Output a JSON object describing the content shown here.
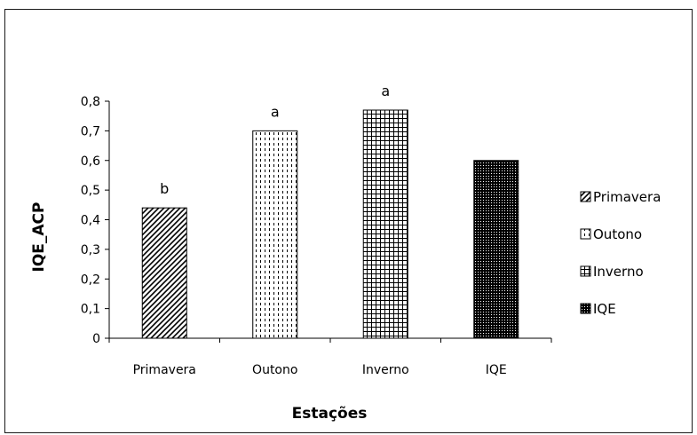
{
  "chart_data": {
    "type": "bar",
    "title": "",
    "xlabel": "Estações",
    "ylabel": "IQE_ACP",
    "categories": [
      "Primavera",
      "Outono",
      "Inverno",
      "IQE"
    ],
    "values": [
      0.44,
      0.7,
      0.77,
      0.6
    ],
    "annotations": [
      "b",
      "a",
      "a",
      ""
    ],
    "yticks": [
      "0",
      "0,1",
      "0,2",
      "0,3",
      "0,4",
      "0,5",
      "0,6",
      "0,7",
      "0,8"
    ],
    "ylim": [
      0,
      0.8
    ],
    "grid": false,
    "legend": {
      "placement": "right",
      "entries": [
        "Primavera",
        "Outono",
        "Inverno",
        "IQE"
      ]
    },
    "patterns": [
      "diagonal-hatch",
      "vertical-dashes",
      "grid",
      "dense-dots"
    ],
    "colors": {
      "line": "#000000",
      "background": "#ffffff"
    }
  }
}
